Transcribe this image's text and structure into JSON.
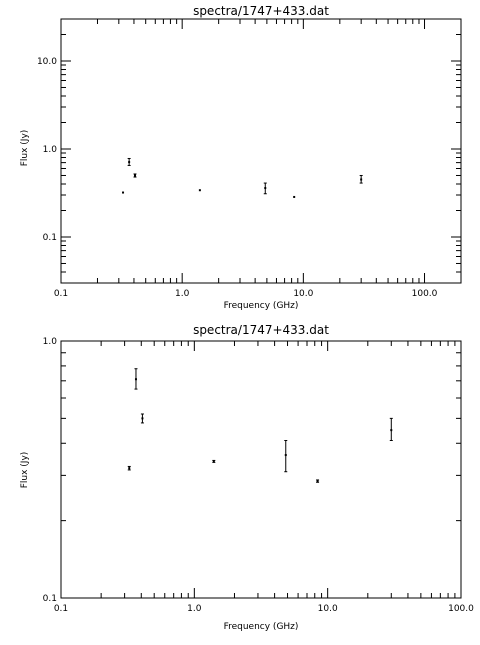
{
  "chart_data": [
    {
      "type": "scatter",
      "title": "spectra/1747+433.dat",
      "xlabel": "Frequency (GHz)",
      "ylabel": "Flux (Jy)",
      "xscale": "log",
      "yscale": "log",
      "xlim": [
        0.1,
        200
      ],
      "ylim": [
        0.03,
        30
      ],
      "xticks": [
        {
          "v": 0.1,
          "label": "0.1"
        },
        {
          "v": 1,
          "label": "1.0"
        },
        {
          "v": 10,
          "label": "10.0"
        },
        {
          "v": 100,
          "label": "100.0"
        }
      ],
      "yticks": [
        {
          "v": 0.1,
          "label": "0.1"
        },
        {
          "v": 1,
          "label": "1.0"
        },
        {
          "v": 10,
          "label": "10.0"
        }
      ],
      "grid": false,
      "points": [
        {
          "x": 0.325,
          "y": 0.32,
          "ylo": 0.315,
          "yhi": 0.325
        },
        {
          "x": 0.365,
          "y": 0.71,
          "ylo": 0.65,
          "yhi": 0.78
        },
        {
          "x": 0.408,
          "y": 0.5,
          "ylo": 0.48,
          "yhi": 0.52
        },
        {
          "x": 1.4,
          "y": 0.34,
          "ylo": 0.337,
          "yhi": 0.343
        },
        {
          "x": 4.85,
          "y": 0.36,
          "ylo": 0.31,
          "yhi": 0.41
        },
        {
          "x": 8.4,
          "y": 0.285,
          "ylo": 0.282,
          "yhi": 0.288
        },
        {
          "x": 30,
          "y": 0.45,
          "ylo": 0.41,
          "yhi": 0.5
        }
      ]
    },
    {
      "type": "scatter",
      "title": "spectra/1747+433.dat",
      "xlabel": "Frequency (GHz)",
      "ylabel": "Flux (Jy)",
      "xscale": "log",
      "yscale": "log",
      "xlim": [
        0.1,
        100
      ],
      "ylim": [
        0.1,
        1
      ],
      "xticks": [
        {
          "v": 0.1,
          "label": "0.1"
        },
        {
          "v": 1,
          "label": "1.0"
        },
        {
          "v": 10,
          "label": "10.0"
        },
        {
          "v": 100,
          "label": "100.0"
        }
      ],
      "yticks": [
        {
          "v": 0.1,
          "label": "0.1"
        },
        {
          "v": 1,
          "label": "1.0"
        }
      ],
      "grid": false,
      "points": [
        {
          "x": 0.325,
          "y": 0.32,
          "ylo": 0.315,
          "yhi": 0.325
        },
        {
          "x": 0.365,
          "y": 0.71,
          "ylo": 0.65,
          "yhi": 0.78
        },
        {
          "x": 0.408,
          "y": 0.5,
          "ylo": 0.48,
          "yhi": 0.52
        },
        {
          "x": 1.4,
          "y": 0.34,
          "ylo": 0.337,
          "yhi": 0.343
        },
        {
          "x": 4.85,
          "y": 0.36,
          "ylo": 0.31,
          "yhi": 0.41
        },
        {
          "x": 8.4,
          "y": 0.285,
          "ylo": 0.282,
          "yhi": 0.288
        },
        {
          "x": 30,
          "y": 0.45,
          "ylo": 0.41,
          "yhi": 0.5
        }
      ]
    }
  ]
}
